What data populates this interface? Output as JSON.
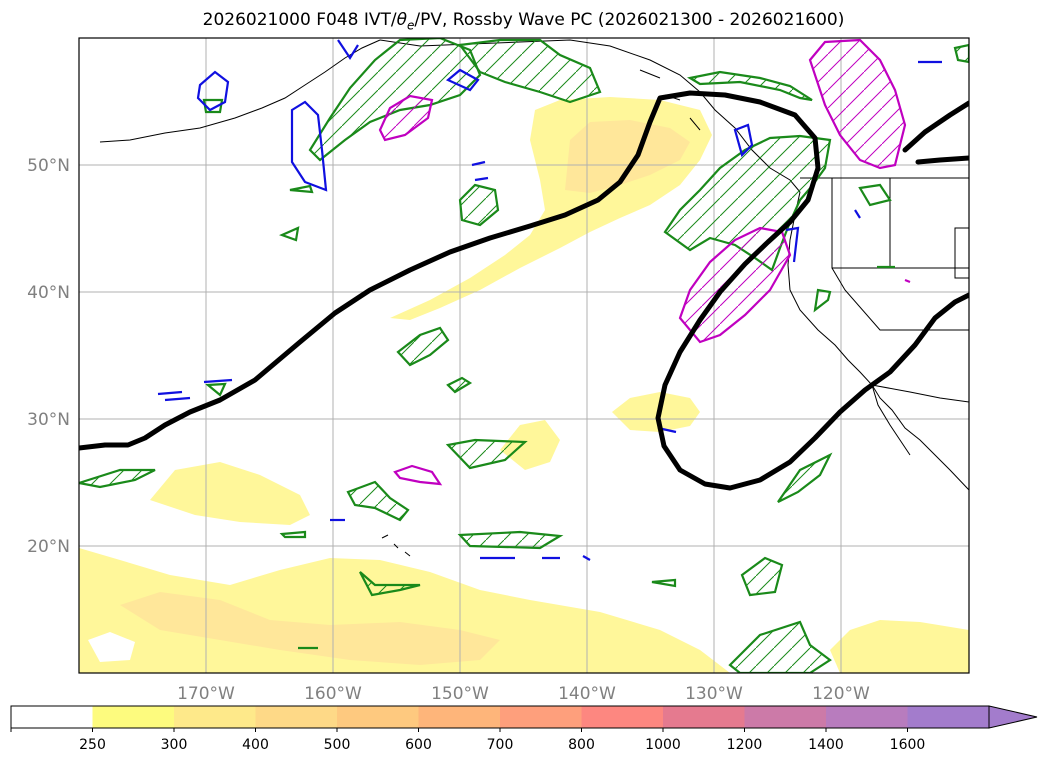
{
  "title": {
    "prefix": "2026021000 F048 IVT/",
    "theta": "θ",
    "theta_sub": "e",
    "suffix": "/PV, Rossby Wave PC (2026021300 - 2026021600)"
  },
  "map": {
    "lon_range": [
      -180,
      -110
    ],
    "lat_range": [
      10,
      60
    ],
    "lat_ticks": [
      {
        "value": 50,
        "label": "50°N"
      },
      {
        "value": 40,
        "label": "40°N"
      },
      {
        "value": 30,
        "label": "30°N"
      },
      {
        "value": 20,
        "label": "20°N"
      }
    ],
    "lon_ticks": [
      {
        "value": -170,
        "label": "170°W"
      },
      {
        "value": -160,
        "label": "160°W"
      },
      {
        "value": -150,
        "label": "150°W"
      },
      {
        "value": -140,
        "label": "140°W"
      },
      {
        "value": -130,
        "label": "130°W"
      },
      {
        "value": -120,
        "label": "120°W"
      }
    ],
    "grid": true,
    "colors": {
      "grid": "#b0b0b0",
      "frame": "#000000",
      "rossby_contour": "#000000",
      "green_contour": "#1a8a1a",
      "blue_contour": "#1010e0",
      "magenta_contour": "#c000c0",
      "ivt_250": "#fff79a",
      "ivt_300": "#ffe79a",
      "coast": "#000000"
    }
  },
  "colorbar": {
    "labels": [
      "250",
      "300",
      "400",
      "500",
      "600",
      "700",
      "800",
      "1000",
      "1200",
      "1400",
      "1600"
    ],
    "colors": [
      "#ffffff",
      "#fdfb7e",
      "#fee98a",
      "#fed987",
      "#fec97f",
      "#feb57a",
      "#fe9f7c",
      "#fd8780",
      "#e57a8f",
      "#cc7aa8",
      "#b87cbe",
      "#a37ccc"
    ],
    "extend": "max"
  }
}
